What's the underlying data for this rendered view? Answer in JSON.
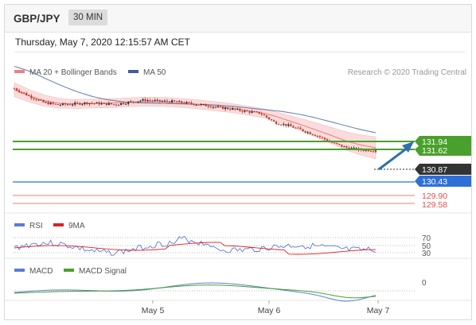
{
  "header": {
    "symbol": "GBP/JPY",
    "timeframe": "30 MIN",
    "date_line": "Thursday, May 7, 2020 12:15:57 AM CET"
  },
  "legend": {
    "ma20": "MA 20 + Bollinger Bands",
    "ma50": "MA 50",
    "credit": "Research © 2020 Trading Central",
    "rsi": "RSI",
    "rsi_ma": "9MA",
    "macd": "MACD",
    "macd_signal": "MACD Signal"
  },
  "colors": {
    "ma20": "#f08080",
    "ma50": "#3f5f9a",
    "bands": "#fbdcdc",
    "green": "#4aa02c",
    "blue": "#2f6fd8",
    "red": "#e05050",
    "dark": "#333333",
    "arrow": "#2f6fb0"
  },
  "chart_data": [
    {
      "type": "candlestick",
      "panel": "price",
      "x_labels": [
        "May 5",
        "May 6",
        "May 7"
      ],
      "ylim": [
        129.3,
        132.6
      ],
      "close_path": [
        132.38,
        132.2,
        132.04,
        131.98,
        132.0,
        132.03,
        132.01,
        131.99,
        132.05,
        132.1,
        132.07,
        132.06,
        132.02,
        131.98,
        131.92,
        131.88,
        131.82,
        131.78,
        131.55,
        131.47,
        131.35,
        131.22,
        131.05,
        130.93,
        130.88,
        130.87
      ],
      "ma20": [
        132.35,
        132.2,
        132.08,
        132.02,
        132.0,
        132.01,
        132.02,
        132.03,
        132.05,
        132.06,
        132.05,
        132.03,
        132.0,
        131.96,
        131.92,
        131.87,
        131.81,
        131.74,
        131.62,
        131.5,
        131.37,
        131.24,
        131.1,
        131.0,
        130.93
      ],
      "ma50": [
        132.92,
        132.8,
        132.62,
        132.45,
        132.3,
        132.18,
        132.1,
        132.05,
        132.03,
        132.02,
        132.01,
        132.0,
        131.99,
        131.97,
        131.94,
        131.9,
        131.86,
        131.82,
        131.76,
        131.68,
        131.58,
        131.48,
        131.38,
        131.3
      ],
      "levels": [
        {
          "value": "131.94",
          "type": "resistance",
          "color": "#4aa02c"
        },
        {
          "value": "131.62",
          "type": "resistance",
          "color": "#4aa02c"
        },
        {
          "value": "130.87",
          "type": "last",
          "color": "#333333"
        },
        {
          "value": "130.43",
          "type": "pivot",
          "color": "#2f6fd8"
        },
        {
          "value": "129.90",
          "type": "support",
          "color": "#e05050"
        },
        {
          "value": "129.58",
          "type": "support",
          "color": "#e05050"
        }
      ],
      "arrow": "up"
    },
    {
      "type": "line",
      "panel": "rsi",
      "y_ticks": [
        "70",
        "50",
        "30"
      ],
      "series": [
        {
          "name": "RSI"
        },
        {
          "name": "9MA"
        }
      ]
    },
    {
      "type": "line",
      "panel": "macd",
      "y_ticks": [
        "0"
      ],
      "series": [
        {
          "name": "MACD"
        },
        {
          "name": "MACD Signal"
        }
      ]
    }
  ]
}
